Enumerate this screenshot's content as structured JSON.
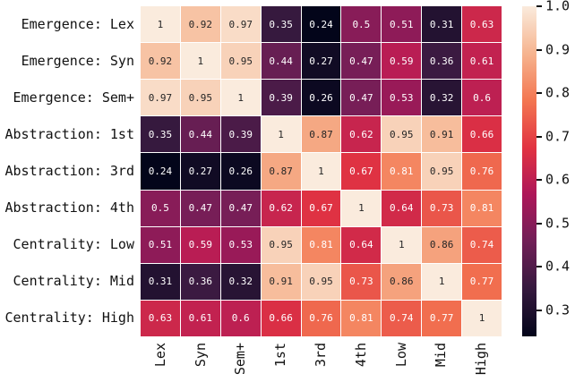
{
  "chart_data": {
    "type": "heatmap",
    "title": "",
    "xlabel": "",
    "ylabel": "",
    "row_labels": [
      "Emergence: Lex",
      "Emergence: Syn",
      "Emergence: Sem+",
      "Abstraction: 1st",
      "Abstraction: 3rd",
      "Abstraction: 4th",
      "Centrality: Low",
      "Centrality: Mid",
      "Centrality: High"
    ],
    "col_labels": [
      "Lex",
      "Syn",
      "Sem+",
      "1st",
      "3rd",
      "4th",
      "Low",
      "Mid",
      "High"
    ],
    "matrix": [
      [
        1,
        0.92,
        0.97,
        0.35,
        0.24,
        0.5,
        0.51,
        0.31,
        0.63
      ],
      [
        0.92,
        1,
        0.95,
        0.44,
        0.27,
        0.47,
        0.59,
        0.36,
        0.61
      ],
      [
        0.97,
        0.95,
        1,
        0.39,
        0.26,
        0.47,
        0.53,
        0.32,
        0.6
      ],
      [
        0.35,
        0.44,
        0.39,
        1,
        0.87,
        0.62,
        0.95,
        0.91,
        0.66
      ],
      [
        0.24,
        0.27,
        0.26,
        0.87,
        1,
        0.67,
        0.81,
        0.95,
        0.76
      ],
      [
        0.5,
        0.47,
        0.47,
        0.62,
        0.67,
        1,
        0.64,
        0.73,
        0.81
      ],
      [
        0.51,
        0.59,
        0.53,
        0.95,
        0.81,
        0.64,
        1,
        0.86,
        0.74
      ],
      [
        0.31,
        0.36,
        0.32,
        0.91,
        0.95,
        0.73,
        0.86,
        1,
        0.77
      ],
      [
        0.63,
        0.61,
        0.6,
        0.66,
        0.76,
        0.81,
        0.74,
        0.77,
        1
      ]
    ],
    "vmin": 0.24,
    "vmax": 1.0,
    "annotated": true,
    "grid_line_color": "#ffffff",
    "background": "#ffffff",
    "label_color": "#111111",
    "colormap": {
      "name": "rocket",
      "anchors": [
        {
          "t": 0.0,
          "color": "#03051A"
        },
        {
          "t": 0.143,
          "color": "#35193E"
        },
        {
          "t": 0.286,
          "color": "#701F57"
        },
        {
          "t": 0.429,
          "color": "#AD1759"
        },
        {
          "t": 0.571,
          "color": "#E13342"
        },
        {
          "t": 0.714,
          "color": "#F37651"
        },
        {
          "t": 0.857,
          "color": "#F6B48F"
        },
        {
          "t": 1.0,
          "color": "#FAEBDD"
        }
      ]
    },
    "annotation_colors": {
      "on_light": "#262626",
      "on_dark": "#ffffff"
    },
    "colorbar": {
      "position": "right",
      "tick_values": [
        1.0,
        0.9,
        0.8,
        0.7,
        0.6,
        0.5,
        0.4,
        0.3
      ],
      "tick_labels": [
        "1.0",
        "0.9",
        "0.8",
        "0.7",
        "0.6",
        "0.5",
        "0.4",
        "0.3"
      ]
    }
  }
}
